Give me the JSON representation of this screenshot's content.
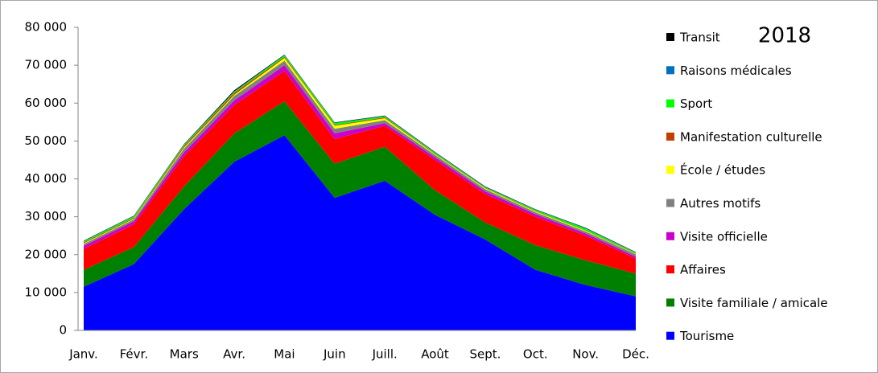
{
  "chart_data": {
    "type": "stacked_area",
    "title": "2018",
    "categories": [
      "Janv.",
      "Févr.",
      "Mars",
      "Avr.",
      "Mai",
      "Juin",
      "Juill.",
      "Août",
      "Sept.",
      "Oct.",
      "Nov.",
      "Déc."
    ],
    "series": [
      {
        "name": "Tourisme",
        "color": "#0000ff",
        "values": [
          11500,
          17500,
          32000,
          44500,
          51500,
          35000,
          39500,
          30500,
          24000,
          16000,
          12000,
          9000
        ]
      },
      {
        "name": "Visite familiale / amicale",
        "color": "#008000",
        "values": [
          4500,
          4500,
          6000,
          7500,
          9000,
          9000,
          9000,
          6500,
          4500,
          6500,
          6500,
          6000
        ]
      },
      {
        "name": "Affaires",
        "color": "#ff0000",
        "values": [
          5500,
          6000,
          8000,
          7500,
          8000,
          6500,
          5500,
          8000,
          7500,
          7500,
          6500,
          4000
        ]
      },
      {
        "name": "Visite officielle",
        "color": "#cc00cc",
        "values": [
          800,
          800,
          1000,
          1200,
          1500,
          1500,
          700,
          700,
          700,
          700,
          600,
          500
        ]
      },
      {
        "name": "Autres motifs",
        "color": "#808080",
        "values": [
          500,
          500,
          1000,
          1200,
          1200,
          1200,
          800,
          600,
          600,
          500,
          500,
          600
        ]
      },
      {
        "name": "École / études",
        "color": "#ffff00",
        "values": [
          200,
          200,
          300,
          300,
          700,
          800,
          500,
          200,
          200,
          200,
          200,
          100
        ]
      },
      {
        "name": "Manifestation culturelle",
        "color": "#c04000",
        "values": [
          200,
          200,
          400,
          500,
          300,
          200,
          200,
          100,
          100,
          100,
          100,
          100
        ]
      },
      {
        "name": "Sport",
        "color": "#00ff00",
        "values": [
          300,
          400,
          300,
          300,
          400,
          500,
          300,
          300,
          200,
          300,
          500,
          200
        ]
      },
      {
        "name": "Raisons médicales",
        "color": "#0070c0",
        "values": [
          100,
          100,
          100,
          100,
          100,
          100,
          100,
          100,
          100,
          100,
          100,
          100
        ]
      },
      {
        "name": "Transit",
        "color": "#000000",
        "values": [
          100,
          100,
          100,
          300,
          100,
          100,
          100,
          100,
          100,
          100,
          100,
          100
        ]
      }
    ],
    "ylim": [
      0,
      80000
    ],
    "yticks": [
      0,
      {
        "value": 10000,
        "label": "10 000"
      },
      {
        "value": 20000,
        "label": "20 000"
      },
      {
        "value": 30000,
        "label": "30 000"
      },
      {
        "value": 40000,
        "label": "40 000"
      },
      {
        "value": 50000,
        "label": "50 000"
      },
      {
        "value": 60000,
        "label": "60 000"
      },
      {
        "value": 70000,
        "label": "70 000"
      },
      {
        "value": 80000,
        "label": "80 000"
      }
    ],
    "legend": "right"
  }
}
